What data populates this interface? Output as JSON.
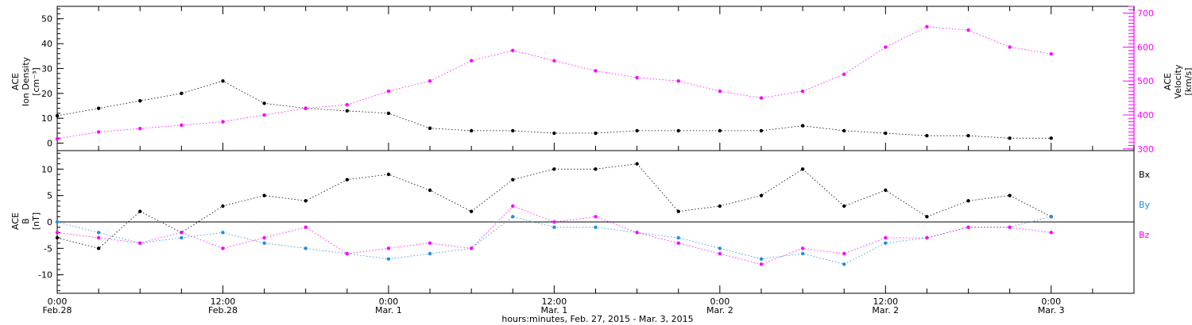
{
  "chart_data": [
    {
      "type": "scatter",
      "panel": "plasma",
      "ylabel_left": [
        "ACE",
        "Ion Density",
        "[cm⁻³]"
      ],
      "ylabel_right": [
        "ACE",
        "Velocity",
        "[km/s]"
      ],
      "yticks_left": [
        "0",
        "10",
        "20",
        "30",
        "40",
        "50"
      ],
      "ylim_left": [
        -3,
        55
      ],
      "yticks_right": [
        "300",
        "400",
        "500",
        "600",
        "700"
      ],
      "ylim_right": [
        295,
        720
      ],
      "series": [
        {
          "axis": "left",
          "color": "#000000",
          "x": [
            0,
            3,
            6,
            9,
            12,
            15,
            18,
            21,
            24,
            27,
            30,
            33,
            36,
            39,
            42,
            45,
            48,
            51,
            54,
            57,
            60,
            63,
            66,
            69,
            72
          ],
          "y": [
            11,
            14,
            17,
            20,
            25,
            16,
            14,
            13,
            12,
            6,
            5,
            5,
            4,
            4,
            5,
            5,
            5,
            5,
            7,
            5,
            4,
            3,
            3,
            2,
            2
          ]
        },
        {
          "axis": "right",
          "color": "#ff00ff",
          "x": [
            0,
            3,
            6,
            9,
            12,
            15,
            18,
            21,
            24,
            27,
            30,
            33,
            36,
            39,
            42,
            45,
            48,
            51,
            54,
            57,
            60,
            63,
            66,
            69,
            72
          ],
          "y": [
            330,
            350,
            360,
            370,
            380,
            400,
            420,
            430,
            470,
            500,
            560,
            590,
            560,
            530,
            510,
            500,
            470,
            450,
            470,
            520,
            600,
            660,
            650,
            600,
            580
          ]
        }
      ]
    },
    {
      "type": "scatter",
      "panel": "magnetic-field",
      "ylabel_left": [
        "ACE",
        "B",
        "[nT]"
      ],
      "yticks_left": [
        "-10",
        "-5",
        "0",
        "5",
        "10"
      ],
      "ylim_left": [
        -13.5,
        13.5
      ],
      "legend": [
        "Bx",
        "By",
        "Bz"
      ],
      "series": [
        {
          "name": "Bx",
          "color": "#000000",
          "x": [
            0,
            3,
            6,
            9,
            12,
            15,
            18,
            21,
            24,
            27,
            30,
            33,
            36,
            39,
            42,
            45,
            48,
            51,
            54,
            57,
            60,
            63,
            66,
            69,
            72
          ],
          "y": [
            -3,
            -5,
            2,
            -2,
            3,
            5,
            4,
            8,
            9,
            6,
            2,
            8,
            10,
            10,
            11,
            2,
            3,
            5,
            10,
            3,
            6,
            1,
            4,
            5,
            1
          ]
        },
        {
          "name": "By",
          "color": "#1e8fe0",
          "x": [
            0,
            3,
            6,
            9,
            12,
            15,
            18,
            21,
            24,
            27,
            30,
            33,
            36,
            39,
            42,
            45,
            48,
            51,
            54,
            57,
            60,
            63,
            66,
            69,
            72
          ],
          "y": [
            0,
            -2,
            -4,
            -3,
            -2,
            -4,
            -5,
            -6,
            -7,
            -6,
            -5,
            1,
            -1,
            -1,
            -2,
            -3,
            -5,
            -7,
            -6,
            -8,
            -4,
            -3,
            -1,
            -1,
            1
          ]
        },
        {
          "name": "Bz",
          "color": "#ff00ff",
          "x": [
            0,
            3,
            6,
            9,
            12,
            15,
            18,
            21,
            24,
            27,
            30,
            33,
            36,
            39,
            42,
            45,
            48,
            51,
            54,
            57,
            60,
            63,
            66,
            69,
            72
          ],
          "y": [
            -2,
            -3,
            -4,
            -2,
            -5,
            -3,
            -1,
            -6,
            -5,
            -4,
            -5,
            3,
            0,
            1,
            -2,
            -4,
            -6,
            -8,
            -5,
            -6,
            -3,
            -3,
            -1,
            -1,
            -2
          ]
        }
      ]
    }
  ],
  "x_axis": {
    "range_hours": [
      0,
      78
    ],
    "tick_labels": [
      {
        "time": "0:00",
        "date": "Feb.28",
        "hour": 0
      },
      {
        "time": "12:00",
        "date": "Feb.28",
        "hour": 12
      },
      {
        "time": "0:00",
        "date": "Mar. 1",
        "hour": 24
      },
      {
        "time": "12:00",
        "date": "Mar. 1",
        "hour": 36
      },
      {
        "time": "0:00",
        "date": "Mar. 2",
        "hour": 48
      },
      {
        "time": "12:00",
        "date": "Mar. 2",
        "hour": 60
      },
      {
        "time": "0:00",
        "date": "Mar. 3",
        "hour": 72
      }
    ],
    "xlabel": "hours:minutes, Feb. 27, 2015 - Mar.  3, 2015"
  },
  "colors": {
    "density": "#000000",
    "velocity": "#ff00ff",
    "bx": "#000000",
    "by": "#1e8fe0",
    "bz": "#ff00ff"
  }
}
